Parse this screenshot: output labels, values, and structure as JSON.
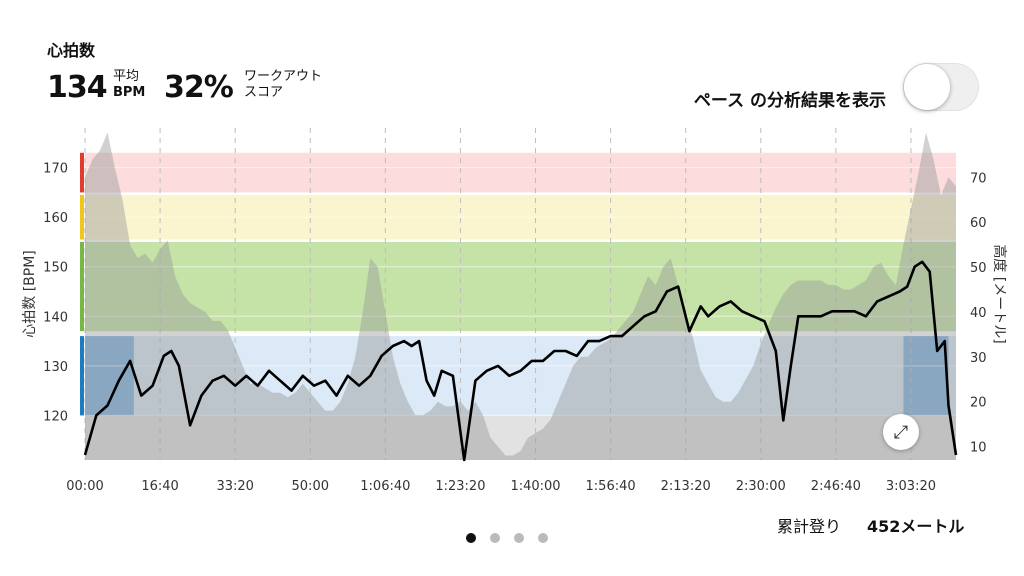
{
  "header": {
    "title": "心拍数",
    "avg_value": "134",
    "avg_label_1": "平均",
    "avg_label_2": "BPM",
    "score_value": "32%",
    "score_label_1": "ワークアウト",
    "score_label_2": "スコア"
  },
  "toggle": {
    "label": "ペース の分析結果を表示",
    "on": false
  },
  "footer": {
    "label": "累計登り",
    "value": "452メートル"
  },
  "pager": {
    "count": 4,
    "active": 0
  },
  "icons": {
    "expand": "expand-icon"
  },
  "chart_data": {
    "type": "line",
    "xlabel": "",
    "ylabel": "心拍数 [BPM]",
    "y2label": "高度 [メートル]",
    "xlim": [
      0,
      11600
    ],
    "ylim": [
      111,
      178
    ],
    "y2lim": [
      7,
      81
    ],
    "x_ticks": [
      0,
      1000,
      2000,
      3000,
      4000,
      5000,
      6000,
      7000,
      8000,
      9000,
      10000,
      11000
    ],
    "x_tick_labels": [
      "00:00",
      "16:40",
      "33:20",
      "50:00",
      "1:06:40",
      "1:23:20",
      "1:40:00",
      "1:56:40",
      "2:13:20",
      "2:30:00",
      "2:46:40",
      "3:03:20"
    ],
    "y_ticks": [
      120,
      130,
      140,
      150,
      160,
      170
    ],
    "y2_ticks": [
      10,
      20,
      30,
      40,
      50,
      60,
      70
    ],
    "grid": true,
    "zones": [
      {
        "from": 120,
        "to": 136,
        "color": "#dbeaf6",
        "edge": "#1b7dc0"
      },
      {
        "from": 137,
        "to": 155,
        "color": "#c5e3a6",
        "edge": "#76b843"
      },
      {
        "from": 155.5,
        "to": 164.5,
        "color": "#fbf5cf",
        "edge": "#f2c618"
      },
      {
        "from": 165,
        "to": 173,
        "color": "#fcdcdc",
        "edge": "#e23b2d"
      }
    ],
    "below_zone_color": "#e2e2e2",
    "highlight_color": "#7fb2e2",
    "highlights": [
      [
        0,
        650
      ],
      [
        10900,
        11500
      ]
    ],
    "series": [
      {
        "role": "heart_rate",
        "color": "#000000",
        "x": [
          0,
          150,
          300,
          450,
          600,
          750,
          900,
          1050,
          1150,
          1250,
          1400,
          1550,
          1700,
          1850,
          2000,
          2150,
          2300,
          2450,
          2600,
          2750,
          2900,
          3050,
          3200,
          3350,
          3500,
          3650,
          3800,
          3950,
          4100,
          4250,
          4350,
          4450,
          4550,
          4650,
          4750,
          4900,
          5050,
          5200,
          5350,
          5500,
          5650,
          5800,
          5950,
          6100,
          6250,
          6400,
          6550,
          6700,
          6850,
          7000,
          7150,
          7300,
          7450,
          7600,
          7750,
          7900,
          8050,
          8200,
          8300,
          8450,
          8600,
          8750,
          8900,
          9050,
          9200,
          9300,
          9400,
          9500,
          9650,
          9800,
          9950,
          10100,
          10250,
          10400,
          10550,
          10700,
          10850,
          10950,
          11050,
          11150,
          11250,
          11350,
          11450,
          11500,
          11600
        ],
        "values": [
          112,
          120,
          122,
          127,
          131,
          124,
          126,
          132,
          133,
          130,
          118,
          124,
          127,
          128,
          126,
          128,
          126,
          129,
          127,
          125,
          128,
          126,
          127,
          124,
          128,
          126,
          128,
          132,
          134,
          135,
          134,
          135,
          127,
          124,
          129,
          128,
          110,
          127,
          129,
          130,
          128,
          129,
          131,
          131,
          133,
          133,
          132,
          135,
          135,
          136,
          136,
          138,
          140,
          141,
          145,
          146,
          137,
          142,
          140,
          142,
          143,
          141,
          140,
          139,
          133,
          119,
          130,
          140,
          140,
          140,
          141,
          141,
          141,
          140,
          143,
          144,
          145,
          146,
          150,
          151,
          149,
          133,
          135,
          122,
          112
        ]
      },
      {
        "role": "altitude",
        "color": "#c8c8c8",
        "x": [
          0,
          100,
          200,
          300,
          400,
          500,
          600,
          700,
          800,
          900,
          1000,
          1100,
          1200,
          1300,
          1400,
          1500,
          1600,
          1700,
          1800,
          1900,
          2000,
          2100,
          2200,
          2300,
          2400,
          2500,
          2600,
          2700,
          2800,
          2900,
          3000,
          3100,
          3200,
          3300,
          3400,
          3500,
          3600,
          3700,
          3800,
          3900,
          4000,
          4100,
          4200,
          4300,
          4400,
          4500,
          4600,
          4700,
          4800,
          4900,
          5000,
          5100,
          5200,
          5300,
          5400,
          5500,
          5600,
          5700,
          5800,
          5900,
          6000,
          6100,
          6200,
          6300,
          6400,
          6500,
          6600,
          6700,
          6800,
          6900,
          7000,
          7100,
          7200,
          7300,
          7400,
          7500,
          7600,
          7700,
          7800,
          7900,
          8000,
          8100,
          8200,
          8300,
          8400,
          8500,
          8600,
          8700,
          8800,
          8900,
          9000,
          9100,
          9200,
          9300,
          9400,
          9500,
          9600,
          9700,
          9800,
          9900,
          10000,
          10100,
          10200,
          10300,
          10400,
          10500,
          10600,
          10700,
          10800,
          10900,
          11000,
          11100,
          11200,
          11300,
          11400,
          11500,
          11600
        ],
        "values": [
          70,
          74,
          76,
          80,
          72,
          65,
          55,
          52,
          53,
          51,
          54,
          56,
          48,
          44,
          42,
          41,
          40,
          38,
          38,
          36,
          32,
          28,
          24,
          24,
          23,
          22,
          22,
          21,
          22,
          24,
          22,
          20,
          18,
          18,
          20,
          24,
          30,
          40,
          52,
          50,
          40,
          30,
          24,
          20,
          17,
          17,
          18,
          20,
          19,
          19,
          20,
          18,
          20,
          17,
          12,
          10,
          8,
          8,
          9,
          12,
          13,
          14,
          16,
          20,
          24,
          28,
          30,
          30,
          32,
          33,
          34,
          36,
          38,
          40,
          44,
          48,
          46,
          50,
          52,
          46,
          40,
          34,
          27,
          24,
          21,
          20,
          20,
          22,
          25,
          28,
          33,
          37,
          41,
          44,
          46,
          47,
          47,
          47,
          47,
          46,
          46,
          45,
          45,
          46,
          47,
          50,
          51,
          48,
          46,
          55,
          63,
          71,
          80,
          74,
          66,
          70,
          68
        ]
      }
    ]
  }
}
